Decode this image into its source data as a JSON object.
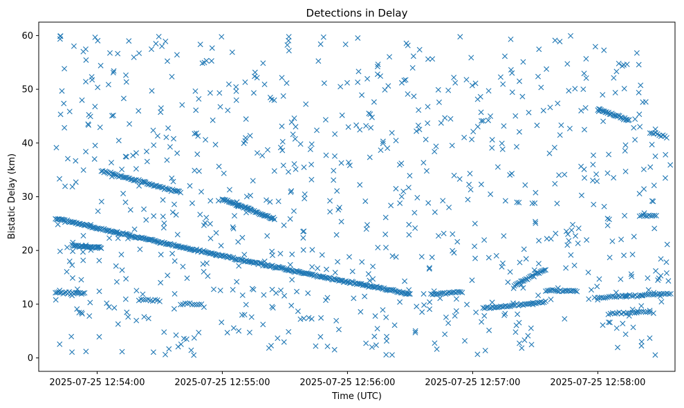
{
  "chart_data": {
    "type": "scatter",
    "title": "Detections in Delay",
    "xlabel": "Time (UTC)",
    "ylabel": "Bistatic Delay (km)",
    "x_ticks": [
      "2025-07-25 12:54:00",
      "2025-07-25 12:55:00",
      "2025-07-25 12:56:00",
      "2025-07-25 12:57:00",
      "2025-07-25 12:58:00"
    ],
    "y_ticks": [
      "0",
      "10",
      "20",
      "30",
      "40",
      "50",
      "60"
    ],
    "xlim": [
      "2025-07-25 12:53:32",
      "2025-07-25 12:58:37"
    ],
    "ylim": [
      -2.5,
      62.5
    ],
    "marker": "x",
    "color": "#1f77b4",
    "grid": false,
    "tracks": [
      {
        "x_start": "2025-07-25 12:53:40",
        "y_start": 26.0,
        "x_end": "2025-07-25 12:56:30",
        "y_end": 11.9,
        "count": 300
      },
      {
        "x_start": "2025-07-25 12:54:02",
        "y_start": 34.8,
        "x_end": "2025-07-25 12:54:40",
        "y_end": 30.8,
        "count": 60
      },
      {
        "x_start": "2025-07-25 12:55:00",
        "y_start": 29.6,
        "x_end": "2025-07-25 12:55:25",
        "y_end": 25.8,
        "count": 50
      },
      {
        "x_start": "2025-07-25 12:53:48",
        "y_start": 20.9,
        "x_end": "2025-07-25 12:54:02",
        "y_end": 20.5,
        "count": 30
      },
      {
        "x_start": "2025-07-25 12:53:40",
        "y_start": 12.1,
        "x_end": "2025-07-25 12:53:54",
        "y_end": 12.0,
        "count": 20
      },
      {
        "x_start": "2025-07-25 12:56:40",
        "y_start": 11.8,
        "x_end": "2025-07-25 12:56:55",
        "y_end": 12.3,
        "count": 20
      },
      {
        "x_start": "2025-07-25 12:57:05",
        "y_start": 9.2,
        "x_end": "2025-07-25 12:57:35",
        "y_end": 10.4,
        "count": 40
      },
      {
        "x_start": "2025-07-25 12:57:20",
        "y_start": 13.5,
        "x_end": "2025-07-25 12:57:35",
        "y_end": 16.5,
        "count": 25
      },
      {
        "x_start": "2025-07-25 12:57:35",
        "y_start": 12.5,
        "x_end": "2025-07-25 12:57:50",
        "y_end": 12.5,
        "count": 20
      },
      {
        "x_start": "2025-07-25 12:58:00",
        "y_start": 11.2,
        "x_end": "2025-07-25 12:58:35",
        "y_end": 12.0,
        "count": 40
      },
      {
        "x_start": "2025-07-25 12:58:05",
        "y_start": 8.2,
        "x_end": "2025-07-25 12:58:25",
        "y_end": 8.6,
        "count": 20
      },
      {
        "x_start": "2025-07-25 12:58:00",
        "y_start": 46.3,
        "x_end": "2025-07-25 12:58:15",
        "y_end": 44.2,
        "count": 30
      },
      {
        "x_start": "2025-07-25 12:58:25",
        "y_start": 41.9,
        "x_end": "2025-07-25 12:58:33",
        "y_end": 41.2,
        "count": 10
      },
      {
        "x_start": "2025-07-25 12:58:20",
        "y_start": 26.4,
        "x_end": "2025-07-25 12:58:28",
        "y_end": 26.4,
        "count": 10
      },
      {
        "x_start": "2025-07-25 12:54:40",
        "y_start": 10.0,
        "x_end": "2025-07-25 12:54:50",
        "y_end": 10.0,
        "count": 10
      },
      {
        "x_start": "2025-07-25 12:54:20",
        "y_start": 10.8,
        "x_end": "2025-07-25 12:54:30",
        "y_end": 10.6,
        "count": 10
      }
    ],
    "clutter": {
      "x_range": [
        "2025-07-25 12:53:40",
        "2025-07-25 12:58:35"
      ],
      "y_range": [
        0.5,
        60
      ],
      "count": 800,
      "seed": 7
    }
  }
}
